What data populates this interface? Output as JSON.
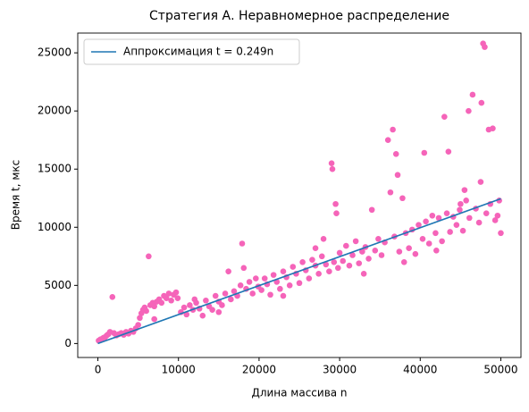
{
  "chart_data": {
    "type": "scatter",
    "title": "Стратегия А. Неравномерное распределение",
    "xlabel": "Длина массива n",
    "ylabel": "Время t, мкс",
    "xlim": [
      -2500,
      52500
    ],
    "ylim": [
      -1200,
      26700
    ],
    "xticks": [
      0,
      10000,
      20000,
      30000,
      40000,
      50000
    ],
    "yticks": [
      0,
      5000,
      10000,
      15000,
      20000,
      25000
    ],
    "legend": "upper left",
    "series": [
      {
        "type": "scatter",
        "color": "#f564b9",
        "x": [
          100,
          300,
          500,
          700,
          900,
          1100,
          1300,
          1500,
          1800,
          2000,
          2300,
          2600,
          2900,
          3200,
          3500,
          3800,
          4100,
          4400,
          4700,
          5000,
          5200,
          5400,
          5600,
          5800,
          6000,
          6300,
          6500,
          6800,
          7000,
          7300,
          7600,
          7900,
          8200,
          8500,
          8800,
          9100,
          9400,
          9700,
          9900,
          7000,
          10300,
          10700,
          11000,
          11400,
          11800,
          12200,
          12600,
          13000,
          13400,
          13800,
          14200,
          14600,
          15000,
          15400,
          15800,
          16200,
          16500,
          16900,
          17300,
          17700,
          17900,
          18100,
          18400,
          18800,
          19200,
          19600,
          19900,
          15000,
          12000,
          20300,
          20700,
          21000,
          21400,
          21800,
          22200,
          22600,
          23000,
          23400,
          23800,
          24200,
          24600,
          25000,
          25400,
          25800,
          26200,
          26600,
          27000,
          27400,
          27800,
          28000,
          28300,
          28700,
          29000,
          29100,
          29300,
          29500,
          29600,
          29800,
          30000,
          23000,
          27000,
          30400,
          30800,
          31200,
          31600,
          32000,
          32400,
          32800,
          33200,
          33600,
          34000,
          34400,
          34800,
          35200,
          35600,
          36000,
          36300,
          36600,
          36800,
          37000,
          37200,
          37400,
          37800,
          38200,
          38600,
          39000,
          39400,
          39800,
          40500,
          33000,
          38000,
          40300,
          40700,
          41100,
          41500,
          41900,
          42300,
          42700,
          43000,
          43300,
          43500,
          43700,
          44100,
          44500,
          44900,
          45000,
          45300,
          45700,
          46000,
          46100,
          46500,
          46900,
          47300,
          47500,
          47600,
          47800,
          48000,
          48200,
          48500,
          48700,
          49000,
          49300,
          49600,
          49800,
          50000,
          42000,
          45500
        ],
        "values": [
          250,
          350,
          400,
          500,
          550,
          700,
          800,
          1000,
          4000,
          900,
          700,
          800,
          900,
          750,
          1000,
          850,
          1100,
          1000,
          1300,
          1600,
          2200,
          2600,
          2900,
          3100,
          2800,
          7500,
          3300,
          3500,
          3200,
          3600,
          3800,
          3500,
          4100,
          3900,
          4300,
          3700,
          4200,
          4400,
          3900,
          2100,
          2700,
          3100,
          2500,
          3300,
          2900,
          3500,
          3000,
          2400,
          3700,
          3200,
          2900,
          4100,
          3600,
          3300,
          4300,
          6200,
          3800,
          4500,
          4100,
          5000,
          8600,
          6500,
          4700,
          5300,
          4300,
          5600,
          4900,
          2700,
          3800,
          4600,
          5600,
          5100,
          4200,
          5900,
          5300,
          4700,
          6200,
          5700,
          5000,
          6600,
          6000,
          5200,
          7000,
          6300,
          5600,
          7200,
          6700,
          6000,
          7500,
          9000,
          6800,
          6200,
          15500,
          15000,
          7000,
          12000,
          11200,
          6500,
          7800,
          4100,
          8200,
          7100,
          8400,
          6700,
          7600,
          8800,
          6900,
          7900,
          8300,
          7300,
          11500,
          8000,
          9000,
          7600,
          8700,
          17500,
          13000,
          18400,
          9200,
          16300,
          14500,
          7900,
          12500,
          9500,
          8200,
          9800,
          7700,
          10200,
          16400,
          6000,
          7000,
          9000,
          10500,
          8600,
          11000,
          9500,
          10800,
          8800,
          19500,
          11200,
          16500,
          9600,
          10900,
          10200,
          11500,
          12000,
          9700,
          12300,
          20000,
          10800,
          21400,
          11600,
          10400,
          13900,
          20700,
          25800,
          25500,
          11200,
          18400,
          12000,
          18500,
          10600,
          11000,
          12300,
          9500,
          8000,
          13200
        ]
      },
      {
        "type": "line",
        "name": "Аппроксимация t = 0.249n",
        "color": "#1f77b4",
        "x": [
          0,
          50000
        ],
        "values": [
          0,
          12450
        ]
      }
    ]
  }
}
